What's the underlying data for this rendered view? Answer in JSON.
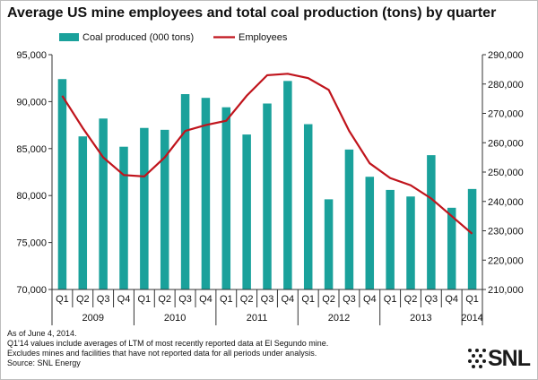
{
  "title": "Average US mine employees and total coal production (tons) by quarter",
  "footnotes": [
    "As of June 4, 2014.",
    "Q1'14 values include averages of LTM of most recently reported data at El Segundo mine.",
    "Excludes mines and facilities that have not reported data for all periods under analysis.",
    "Source: SNL Energy"
  ],
  "logo": {
    "text": "SNL"
  },
  "chart_data": {
    "type": "bar",
    "title": "Average US mine employees and total coal production (tons) by quarter",
    "categories": [
      "Q1",
      "Q2",
      "Q3",
      "Q4",
      "Q1",
      "Q2",
      "Q3",
      "Q4",
      "Q1",
      "Q2",
      "Q3",
      "Q4",
      "Q1",
      "Q2",
      "Q3",
      "Q4",
      "Q1",
      "Q2",
      "Q3",
      "Q4",
      "Q1"
    ],
    "category_groups": [
      {
        "label": "2009",
        "count": 4
      },
      {
        "label": "2010",
        "count": 4
      },
      {
        "label": "2011",
        "count": 4
      },
      {
        "label": "2012",
        "count": 4
      },
      {
        "label": "2013",
        "count": 4
      },
      {
        "label": "2014",
        "count": 1
      }
    ],
    "series": [
      {
        "name": "Coal produced (000 tons)",
        "type": "bar",
        "axis": "left",
        "color": "#1aa19b",
        "values": [
          92400,
          86300,
          88200,
          85200,
          87200,
          87000,
          90800,
          90400,
          89400,
          86500,
          89800,
          92200,
          87600,
          79600,
          84900,
          82000,
          80600,
          79900,
          84300,
          78700,
          80700
        ]
      },
      {
        "name": "Employees",
        "type": "line",
        "axis": "right",
        "color": "#c0141c",
        "values": [
          276000,
          265000,
          255000,
          249000,
          248500,
          255000,
          264000,
          266000,
          267500,
          276000,
          283000,
          283500,
          282000,
          278000,
          264000,
          253000,
          248000,
          245500,
          241000,
          235000,
          229000
        ]
      }
    ],
    "y_left": {
      "min": 70000,
      "max": 95000,
      "ticks": [
        "70,000",
        "75,000",
        "80,000",
        "85,000",
        "90,000",
        "95,000"
      ]
    },
    "y_right": {
      "min": 210000,
      "max": 290000,
      "ticks": [
        "210,000",
        "220,000",
        "230,000",
        "240,000",
        "250,000",
        "260,000",
        "270,000",
        "280,000",
        "290,000"
      ]
    },
    "legend": "top-left",
    "grid": false
  }
}
